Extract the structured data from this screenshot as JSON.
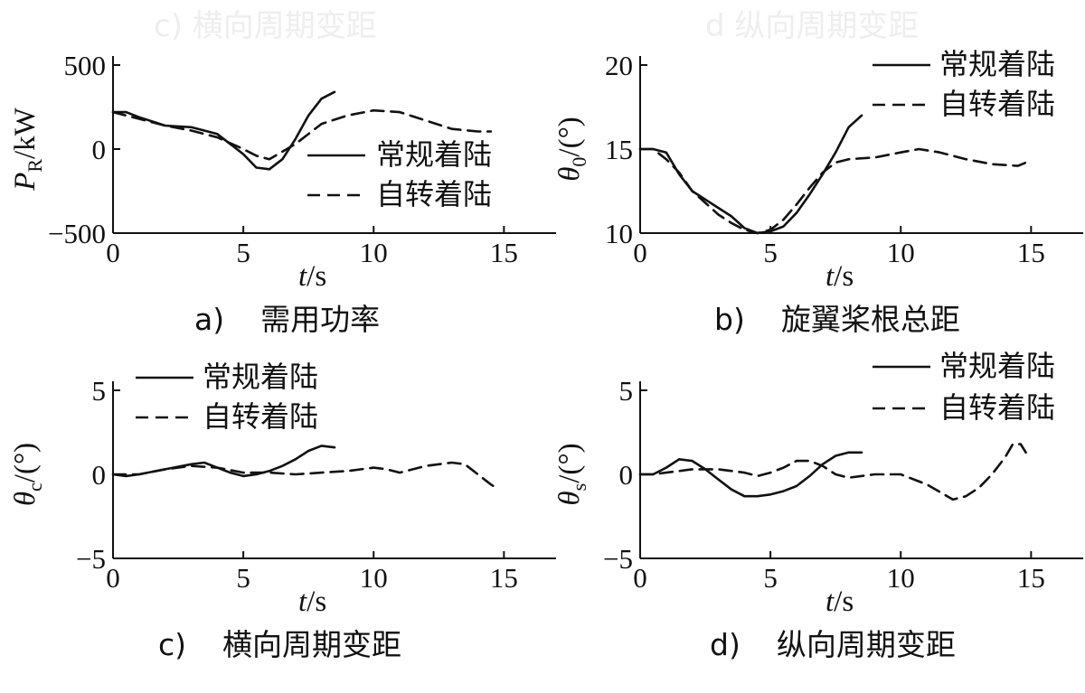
{
  "ghost_text": {
    "left": "c)  横向周期变距",
    "right": "d  纵向周期变距"
  },
  "chart_data": [
    {
      "id": "a",
      "type": "line",
      "caption_letter": "a)",
      "caption_text": "需用功率",
      "xlabel_var": "t",
      "xlabel_unit": "/s",
      "ylabel_var": "P",
      "ylabel_sub": "R",
      "ylabel_unit": "/kW",
      "xlim": [
        0,
        17
      ],
      "ylim": [
        -500,
        500
      ],
      "xticks": [
        "0",
        "5",
        "10",
        "15"
      ],
      "xtick_values": [
        0,
        5,
        10,
        15
      ],
      "yticks": [
        "500",
        "0",
        "−500"
      ],
      "ytick_values": [
        500,
        0,
        -500
      ],
      "legend_position": "right-middle",
      "series": [
        {
          "name": "常规着陆",
          "style": "solid",
          "x": [
            0,
            0.5,
            1,
            2,
            3,
            4,
            5,
            5.5,
            6,
            6.5,
            7,
            7.5,
            8,
            8.5
          ],
          "y": [
            220,
            220,
            190,
            140,
            130,
            90,
            -30,
            -110,
            -120,
            -60,
            60,
            200,
            300,
            340
          ]
        },
        {
          "name": "自转着陆",
          "style": "dashed",
          "x": [
            0,
            1,
            2,
            3,
            4,
            5,
            5.5,
            6,
            7,
            8,
            9,
            10,
            11,
            12,
            13,
            14,
            14.5
          ],
          "y": [
            220,
            180,
            140,
            110,
            70,
            0,
            -40,
            -60,
            30,
            150,
            200,
            230,
            220,
            170,
            120,
            105,
            105
          ]
        }
      ]
    },
    {
      "id": "b",
      "type": "line",
      "caption_letter": "b)",
      "caption_text": "旋翼桨根总距",
      "xlabel_var": "t",
      "xlabel_unit": "/s",
      "ylabel_var": "θ",
      "ylabel_sub": "0",
      "ylabel_unit": "/(°)",
      "xlim": [
        0,
        17
      ],
      "ylim": [
        10,
        20
      ],
      "xticks": [
        "0",
        "5",
        "10",
        "15"
      ],
      "xtick_values": [
        0,
        5,
        10,
        15
      ],
      "yticks": [
        "20",
        "15",
        "10"
      ],
      "ytick_values": [
        20,
        15,
        10
      ],
      "legend_position": "top-right",
      "series": [
        {
          "name": "常规着陆",
          "style": "solid",
          "x": [
            0,
            0.5,
            1,
            1.5,
            2,
            2.5,
            3,
            3.5,
            4,
            4.5,
            5,
            5.5,
            6,
            6.5,
            7,
            7.5,
            8,
            8.5
          ],
          "y": [
            15,
            15,
            14.8,
            13.5,
            12.5,
            12,
            11.5,
            11,
            10.3,
            10,
            10.1,
            10.4,
            11.2,
            12.3,
            13.5,
            14.8,
            16.3,
            17
          ]
        },
        {
          "name": "自转着陆",
          "style": "dashed",
          "x": [
            0,
            0.5,
            1,
            1.5,
            2,
            2.5,
            3,
            3.5,
            4,
            4.5,
            5,
            5.5,
            6,
            6.5,
            7,
            7.5,
            8,
            9,
            10,
            10.7,
            11.5,
            12.5,
            13.5,
            14.5,
            14.8
          ],
          "y": [
            15,
            15,
            14.4,
            13.6,
            12.5,
            11.8,
            11.1,
            10.6,
            10.2,
            10,
            10.2,
            10.8,
            11.7,
            12.7,
            13.6,
            14.2,
            14.4,
            14.5,
            14.8,
            15,
            14.8,
            14.4,
            14.1,
            14,
            14.2
          ]
        }
      ]
    },
    {
      "id": "c",
      "type": "line",
      "caption_letter": "c)",
      "caption_text": "横向周期变距",
      "xlabel_var": "t",
      "xlabel_unit": "/s",
      "ylabel_var": "θ",
      "ylabel_sub": "c",
      "ylabel_unit": "/(°)",
      "xlim": [
        0,
        17
      ],
      "ylim": [
        -5,
        5
      ],
      "xticks": [
        "0",
        "5",
        "10",
        "15"
      ],
      "xtick_values": [
        0,
        5,
        10,
        15
      ],
      "yticks": [
        "5",
        "0",
        "−5"
      ],
      "ytick_values": [
        5,
        0,
        -5
      ],
      "legend_position": "top",
      "series": [
        {
          "name": "常规着陆",
          "style": "solid",
          "x": [
            0,
            0.5,
            1,
            2,
            3,
            3.5,
            4,
            4.5,
            5,
            5.5,
            6,
            6.5,
            7,
            7.5,
            8,
            8.5
          ],
          "y": [
            0,
            -0.1,
            0,
            0.3,
            0.6,
            0.7,
            0.4,
            0.1,
            -0.1,
            0,
            0.2,
            0.5,
            0.9,
            1.4,
            1.7,
            1.6
          ]
        },
        {
          "name": "自转着陆",
          "style": "dashed",
          "x": [
            0,
            1,
            2,
            3,
            4,
            5,
            6,
            7,
            8,
            9,
            10,
            10.5,
            11,
            12,
            13,
            13.5,
            14,
            14.5,
            14.8
          ],
          "y": [
            0,
            0,
            0.3,
            0.5,
            0.4,
            0.1,
            0.1,
            0,
            0.1,
            0.2,
            0.4,
            0.3,
            0.1,
            0.5,
            0.7,
            0.6,
            0,
            -0.6,
            -0.9
          ]
        }
      ]
    },
    {
      "id": "d",
      "type": "line",
      "caption_letter": "d)",
      "caption_text": "纵向周期变距",
      "xlabel_var": "t",
      "xlabel_unit": "/s",
      "ylabel_var": "θ",
      "ylabel_sub": "s",
      "ylabel_unit": "/(°)",
      "xlim": [
        0,
        17
      ],
      "ylim": [
        -5,
        5
      ],
      "xticks": [
        "0",
        "5",
        "10",
        "15"
      ],
      "xtick_values": [
        0,
        5,
        10,
        15
      ],
      "yticks": [
        "5",
        "0",
        "−5"
      ],
      "ytick_values": [
        5,
        0,
        -5
      ],
      "legend_position": "top-right",
      "series": [
        {
          "name": "常规着陆",
          "style": "solid",
          "x": [
            0,
            0.5,
            1,
            1.5,
            2,
            2.5,
            3,
            3.5,
            4,
            4.5,
            5,
            5.5,
            6,
            6.5,
            7,
            7.5,
            8,
            8.5
          ],
          "y": [
            0,
            0,
            0.4,
            0.9,
            0.8,
            0.3,
            -0.3,
            -0.9,
            -1.3,
            -1.3,
            -1.2,
            -1.0,
            -0.7,
            -0.1,
            0.6,
            1.1,
            1.3,
            1.3
          ]
        },
        {
          "name": "自转着陆",
          "style": "dashed",
          "x": [
            0,
            0.5,
            1,
            1.5,
            2,
            3,
            4,
            4.5,
            5,
            5.5,
            6,
            6.5,
            7,
            7.5,
            8,
            9,
            10,
            11,
            12,
            12.5,
            13,
            13.5,
            14,
            14.3,
            14.6,
            14.8
          ],
          "y": [
            0,
            0,
            0.1,
            0.2,
            0.3,
            0.3,
            0.1,
            -0.1,
            0.1,
            0.4,
            0.8,
            0.8,
            0.5,
            0,
            -0.2,
            0,
            0,
            -0.6,
            -1.5,
            -1.3,
            -0.8,
            0,
            1.0,
            1.8,
            1.8,
            1.3
          ]
        }
      ]
    }
  ]
}
